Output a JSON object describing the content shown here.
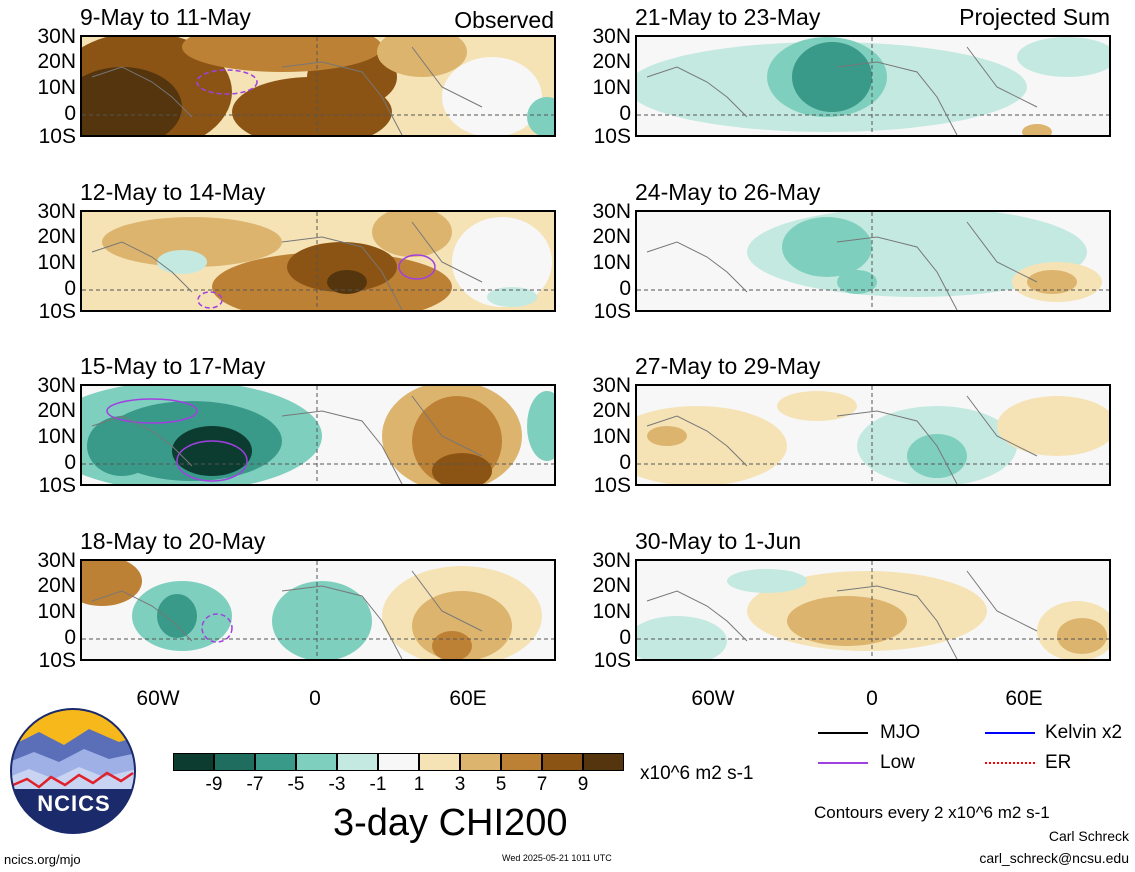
{
  "left_tag": "Observed",
  "right_tag": "Projected Sum",
  "panels_left": [
    {
      "title": "9-May to 11-May"
    },
    {
      "title": "12-May to 14-May"
    },
    {
      "title": "15-May to 17-May"
    },
    {
      "title": "18-May to 20-May"
    }
  ],
  "panels_right": [
    {
      "title": "21-May to 23-May"
    },
    {
      "title": "24-May to 26-May"
    },
    {
      "title": "27-May to 29-May"
    },
    {
      "title": "30-May to 1-Jun"
    }
  ],
  "lat_labels": [
    "30N",
    "20N",
    "10N",
    "0",
    "10S"
  ],
  "lon_labels": [
    "60W",
    "0",
    "60E"
  ],
  "colorbar": {
    "labels": [
      "-9",
      "-7",
      "-5",
      "-3",
      "-1",
      "1",
      "3",
      "5",
      "7",
      "9"
    ],
    "colors": [
      "#0c3b30",
      "#1f6d5f",
      "#3a9a8a",
      "#7fcfbf",
      "#c4e9e0",
      "#f7f7f7",
      "#f5e3b6",
      "#dcb46e",
      "#bd8135",
      "#8c5414",
      "#54350d"
    ],
    "units": "x10^6 m2 s-1"
  },
  "big_title": "3-day CHI200",
  "legend": [
    {
      "label": "MJO",
      "color": "#000000"
    },
    {
      "label": "Kelvin x2",
      "color": "#0000ff"
    },
    {
      "label": "Low",
      "color": "#a040e0"
    },
    {
      "label": "ER",
      "color": "#ff0000"
    }
  ],
  "contour_note": "Contours every 2 x10^6 m2 s-1",
  "author": "Carl Schreck",
  "email": "carl_schreck@ncsu.edu",
  "url": "ncics.org/mjo",
  "timestamp": "Wed 2025-05-21 1011 UTC",
  "logo_text": "NCICS"
}
